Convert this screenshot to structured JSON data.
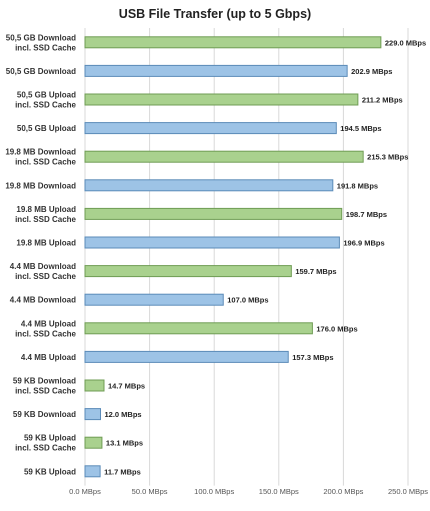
{
  "chart_data": {
    "type": "bar",
    "orientation": "horizontal",
    "title": "USB File Transfer (up to 5 Gbps)",
    "xlabel": "",
    "ylabel": "",
    "xlim": [
      0,
      250
    ],
    "xticks": [
      0,
      50,
      100,
      150,
      200,
      250
    ],
    "xtick_labels": [
      "0.0 MBps",
      "50.0 MBps",
      "100.0 MBps",
      "150.0 MBps",
      "200.0 MBps",
      "250.0 MBps"
    ],
    "grid": true,
    "categories": [
      [
        "50,5 GB Download",
        "incl. SSD Cache"
      ],
      [
        "50,5 GB Download"
      ],
      [
        "50,5 GB Upload",
        "incl. SSD Cache"
      ],
      [
        "50,5 GB Upload"
      ],
      [
        "19.8 MB Download",
        "incl. SSD Cache"
      ],
      [
        "19.8 MB Download"
      ],
      [
        "19.8 MB Upload",
        "incl. SSD Cache"
      ],
      [
        "19.8 MB Upload"
      ],
      [
        "4.4 MB Download",
        "incl. SSD Cache"
      ],
      [
        "4.4 MB Download"
      ],
      [
        "4.4 MB Upload",
        "incl. SSD Cache"
      ],
      [
        "4.4 MB Upload"
      ],
      [
        "59 KB Download",
        "incl. SSD Cache"
      ],
      [
        "59 KB Download"
      ],
      [
        "59 KB Upload",
        "incl. SSD Cache"
      ],
      [
        "59 KB Upload"
      ]
    ],
    "values": [
      229.0,
      202.9,
      211.2,
      194.5,
      215.3,
      191.8,
      198.7,
      196.9,
      159.7,
      107.0,
      176.0,
      157.3,
      14.7,
      12.0,
      13.1,
      11.7
    ],
    "value_labels": [
      "229.0 MBps",
      "202.9 MBps",
      "211.2 MBps",
      "194.5 MBps",
      "215.3 MBps",
      "191.8 MBps",
      "198.7 MBps",
      "196.9 MBps",
      "159.7 MBps",
      "107.0 MBps",
      "176.0 MBps",
      "157.3 MBps",
      "14.7 MBps",
      "12.0 MBps",
      "13.1 MBps",
      "11.7 MBps"
    ],
    "bar_colors": [
      "green",
      "blue",
      "green",
      "blue",
      "green",
      "blue",
      "green",
      "blue",
      "green",
      "blue",
      "green",
      "blue",
      "green",
      "blue",
      "green",
      "blue"
    ],
    "colors": {
      "green": {
        "fill": "#a9d18e",
        "stroke": "#6f9c54"
      },
      "blue": {
        "fill": "#9dc3e6",
        "stroke": "#5b8bb8"
      }
    }
  }
}
